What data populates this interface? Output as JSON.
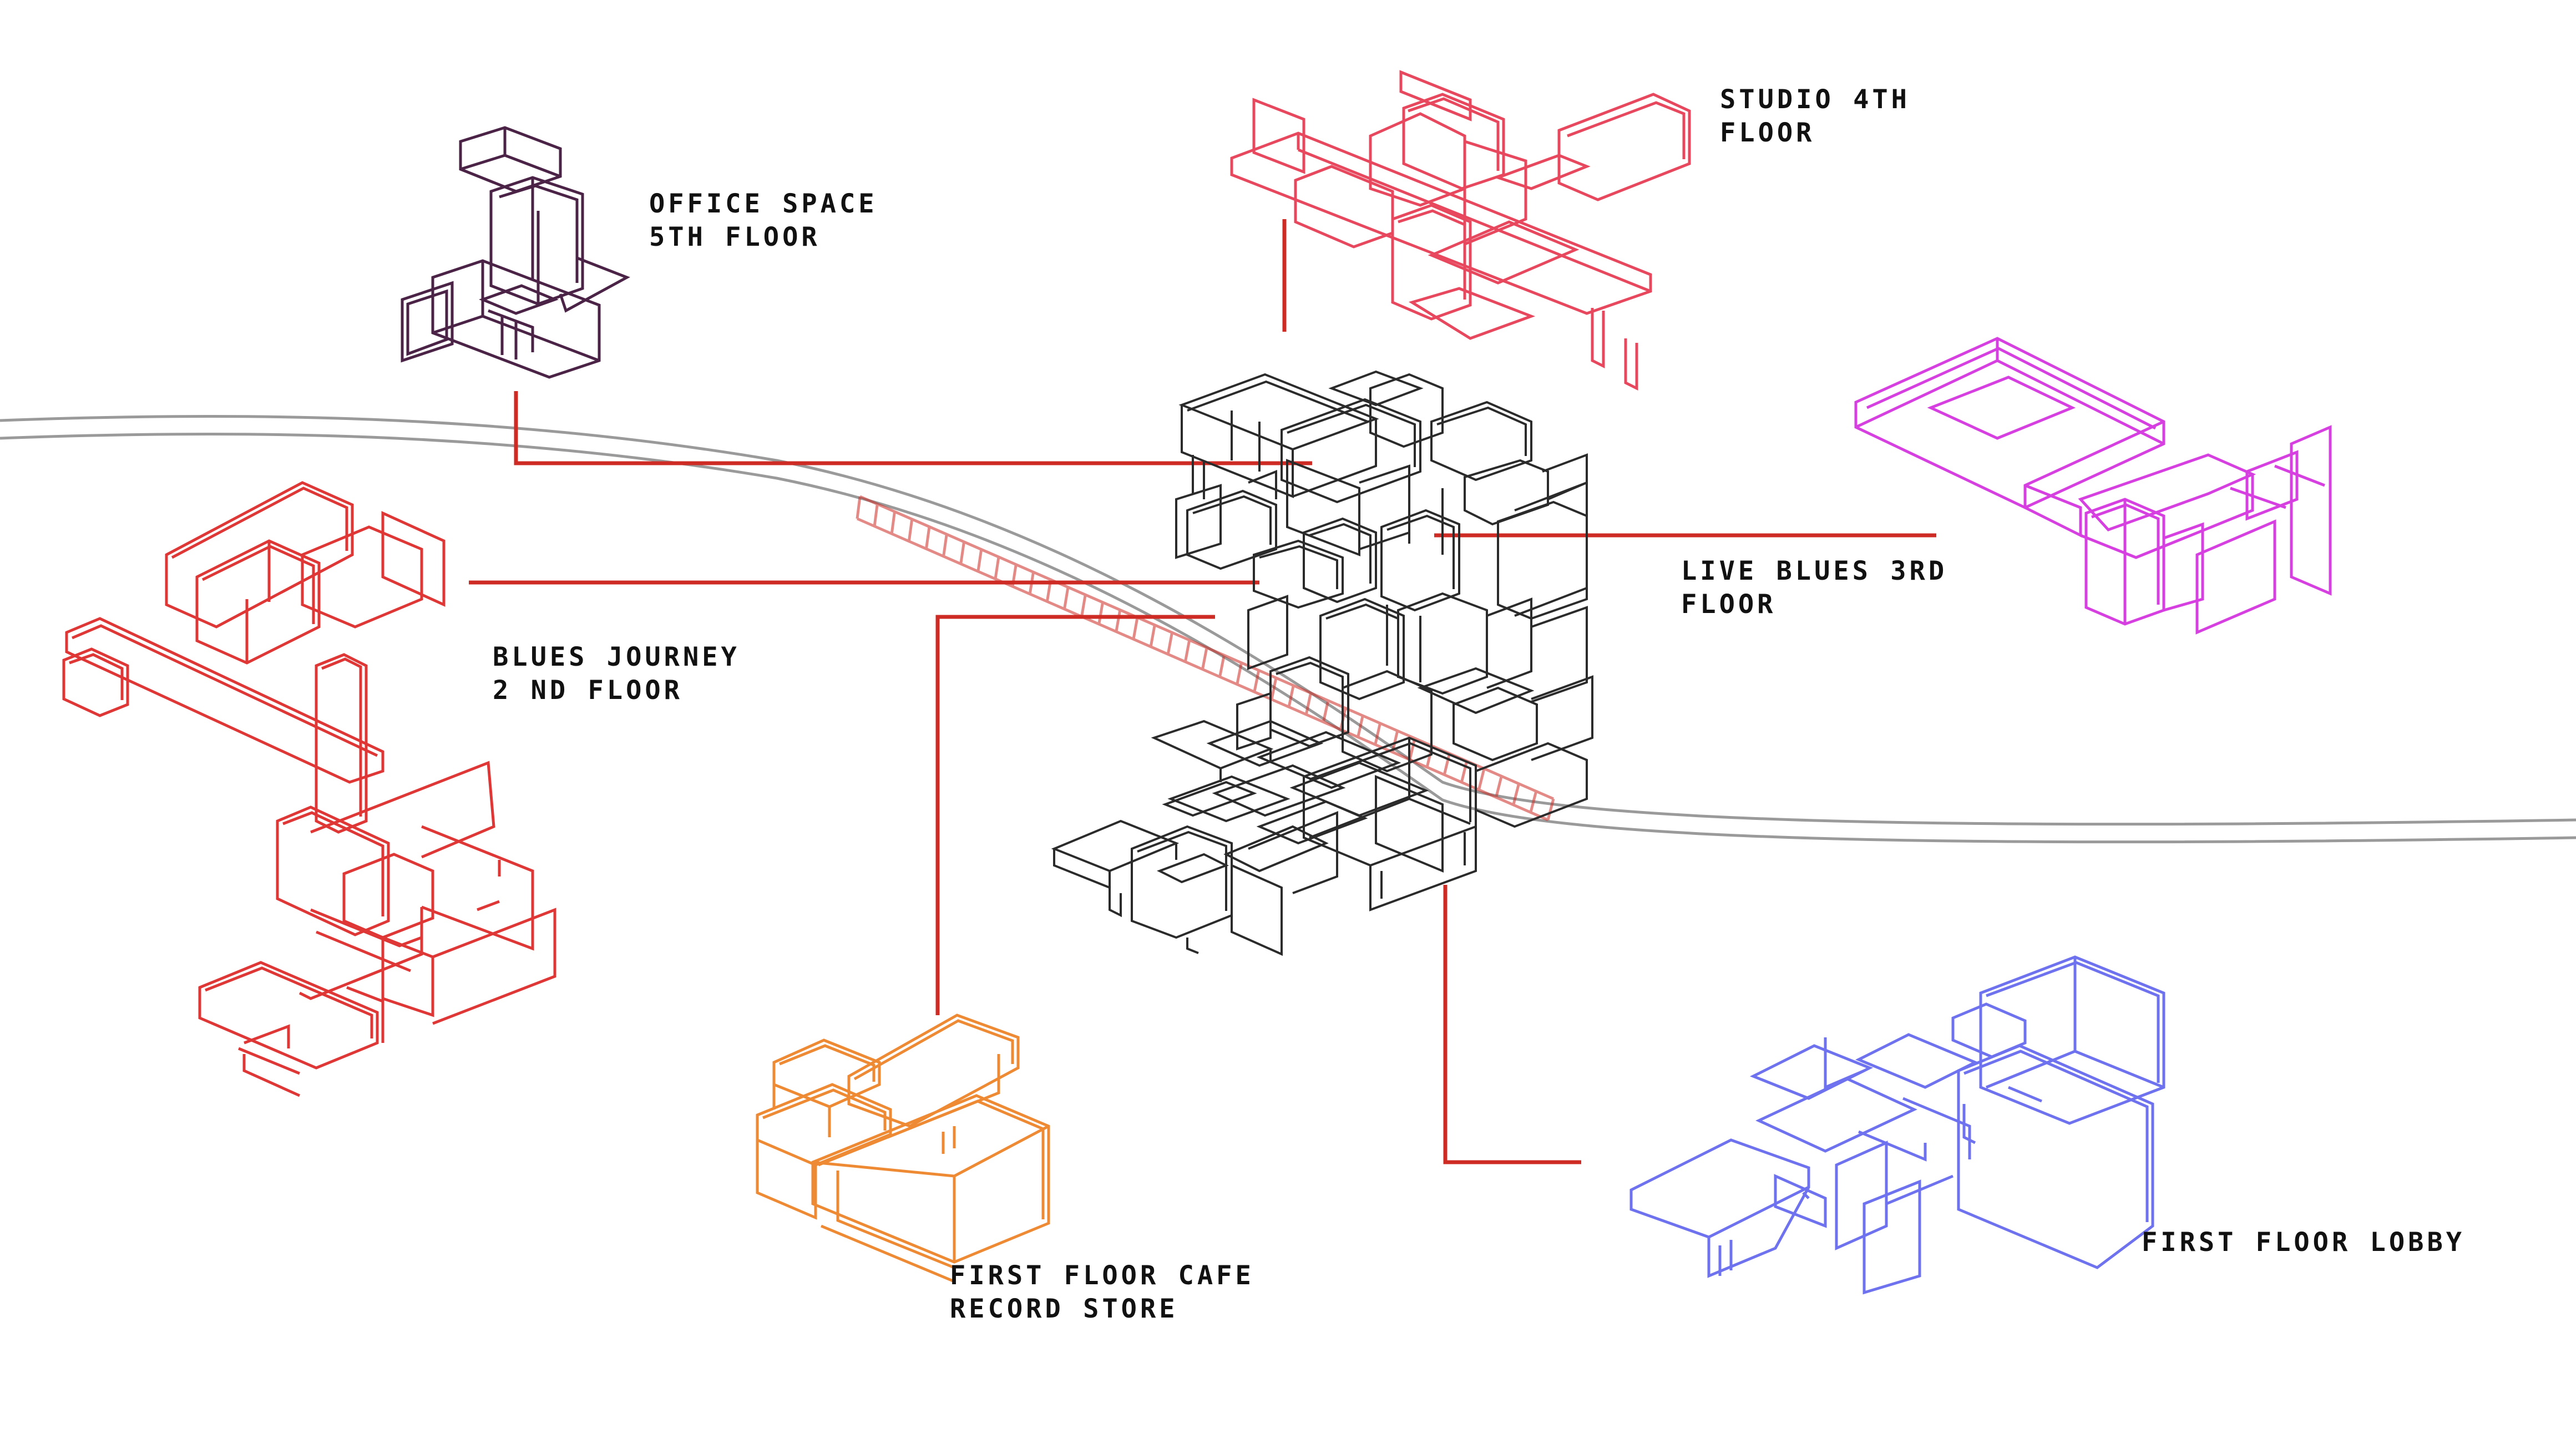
{
  "colors": {
    "office": "#4a2346",
    "studio": "#e8485e",
    "live": "#d63fe0",
    "journey": "#df3636",
    "cafe": "#ee8a34",
    "lobby": "#6e72ef",
    "central": "#2b2b2b",
    "leader": "#cd2b24",
    "street": "#9a9a9a"
  },
  "labels": {
    "office": [
      "OFFICE SPACE",
      "5TH FLOOR"
    ],
    "studio": [
      "STUDIO 4TH",
      "FLOOR"
    ],
    "live": [
      "LIVE BLUES 3RD",
      "FLOOR"
    ],
    "journey": [
      "BLUES JOURNEY",
      "2 ND FLOOR"
    ],
    "cafe": [
      "FIRST FLOOR CAFE",
      "RECORD STORE"
    ],
    "lobby": [
      "FIRST FLOOR LOBBY"
    ]
  }
}
